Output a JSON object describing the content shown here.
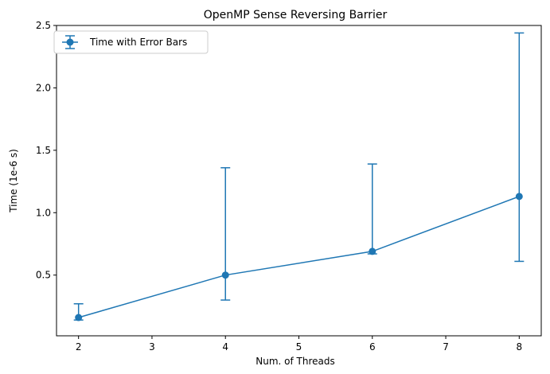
{
  "chart_data": {
    "type": "line",
    "title": "OpenMP Sense Reversing Barrier",
    "xlabel": "Num. of Threads",
    "ylabel": "Time (1e-6 s)",
    "xlim": [
      1.7,
      8.3
    ],
    "ylim": [
      0.0135,
      2.5
    ],
    "xticks": [
      2,
      3,
      4,
      5,
      6,
      7,
      8
    ],
    "yticks": [
      0.5,
      1.0,
      1.5,
      2.0,
      2.5
    ],
    "ytick_labels": [
      "0.5",
      "1.0",
      "1.5",
      "2.0",
      "2.5"
    ],
    "grid": false,
    "legend_position": "top-left",
    "series": [
      {
        "name": "Time with Error Bars",
        "color": "#1f77b4",
        "marker": "circle",
        "x": [
          2,
          4,
          6,
          8
        ],
        "y": [
          0.16,
          0.5,
          0.69,
          1.13
        ],
        "y_low": [
          0.14,
          0.3,
          0.67,
          0.61
        ],
        "y_high": [
          0.27,
          1.36,
          1.39,
          2.44
        ]
      }
    ]
  }
}
